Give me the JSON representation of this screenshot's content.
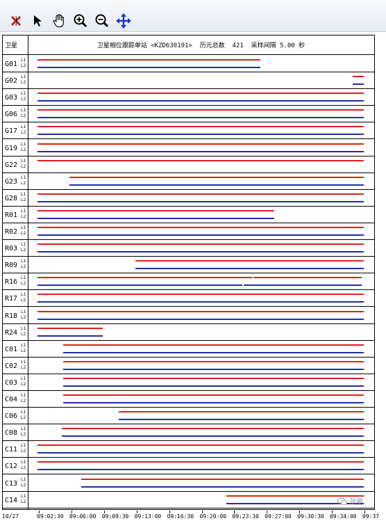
{
  "toolbar": {
    "tools": [
      {
        "name": "clear-icon",
        "color": "#cc1111"
      },
      {
        "name": "pointer-icon",
        "color": "#000000"
      },
      {
        "name": "pan-hand-icon",
        "color": "#000000"
      },
      {
        "name": "zoom-in-icon",
        "color": "#000000"
      },
      {
        "name": "zoom-out-icon",
        "color": "#000000"
      },
      {
        "name": "move-arrows-icon",
        "color": "#1a2fd0"
      }
    ]
  },
  "header": {
    "sat_label": "卫星",
    "title": "卫星相位跟踪单站 <KZD630191>  历元总数  421  采样间隔 5.00 秒"
  },
  "colors": {
    "l1": "#e0201c",
    "l2": "#1c2fa8"
  },
  "time_axis": {
    "date": "10/27",
    "start": "09:02:30",
    "end": "09:37:30",
    "ticks": [
      "09:02:30",
      "09:06:00",
      "09:09:30",
      "09:13:00",
      "09:16:30",
      "09:20:00",
      "09:23:30",
      "09:27:00",
      "09:30:30",
      "09:34:00",
      "09:37"
    ]
  },
  "satellites": [
    {
      "name": "G01",
      "band1": "L1",
      "band2": "L2",
      "l1": [
        [
          0.0,
          0.682
        ]
      ],
      "l2": [
        [
          0.0,
          0.682
        ]
      ]
    },
    {
      "name": "G02",
      "band1": "L1",
      "band2": "L2",
      "l1": [
        [
          0.966,
          1.0
        ]
      ],
      "l2": [
        [
          0.966,
          1.0
        ]
      ]
    },
    {
      "name": "G03",
      "band1": "L1",
      "band2": "L2",
      "l1": [
        [
          0.0,
          1.0
        ]
      ],
      "l2": [
        [
          0.0,
          1.0
        ]
      ]
    },
    {
      "name": "G06",
      "band1": "L1",
      "band2": "L2",
      "l1": [
        [
          0.0,
          1.0
        ]
      ],
      "l2": [
        [
          0.0,
          1.0
        ]
      ]
    },
    {
      "name": "G17",
      "band1": "L1",
      "band2": "L2",
      "l1": [
        [
          0.0,
          1.0
        ]
      ],
      "l2": [
        [
          0.0,
          1.0
        ]
      ]
    },
    {
      "name": "G19",
      "band1": "L1",
      "band2": "L2",
      "l1": [
        [
          0.0,
          1.0
        ]
      ],
      "l2": [
        [
          0.0,
          1.0
        ]
      ]
    },
    {
      "name": "G22",
      "band1": "L1",
      "band2": "L2",
      "l1": [
        [
          0.0,
          1.0
        ]
      ],
      "l2": []
    },
    {
      "name": "G23",
      "band1": "L1",
      "band2": "L2",
      "l1": [
        [
          0.098,
          1.0
        ]
      ],
      "l2": [
        [
          0.098,
          1.0
        ]
      ]
    },
    {
      "name": "G28",
      "band1": "L1",
      "band2": "L2",
      "l1": [
        [
          0.0,
          1.0
        ]
      ],
      "l2": [
        [
          0.0,
          1.0
        ]
      ]
    },
    {
      "name": "R01",
      "band1": "L1",
      "band2": "L2",
      "l1": [
        [
          0.0,
          0.726
        ]
      ],
      "l2": [
        [
          0.0,
          0.726
        ]
      ]
    },
    {
      "name": "R02",
      "band1": "L1",
      "band2": "L2",
      "l1": [
        [
          0.0,
          1.0
        ]
      ],
      "l2": [
        [
          0.0,
          1.0
        ]
      ]
    },
    {
      "name": "R03",
      "band1": "L1",
      "band2": "L2",
      "l1": [
        [
          0.0,
          1.0
        ]
      ],
      "l2": [
        [
          0.0,
          1.0
        ]
      ]
    },
    {
      "name": "R09",
      "band1": "L1",
      "band2": "L2",
      "l1": [
        [
          0.299,
          1.0
        ]
      ],
      "l2": [
        [
          0.299,
          1.0
        ]
      ]
    },
    {
      "name": "R16",
      "band1": "L1",
      "band2": "L2",
      "l1": [
        [
          0.0,
          0.658
        ],
        [
          0.662,
          0.994
        ]
      ],
      "l2": [
        [
          0.0,
          0.628
        ],
        [
          0.632,
          0.994
        ]
      ]
    },
    {
      "name": "R17",
      "band1": "L1",
      "band2": "L2",
      "l1": [
        [
          0.0,
          1.0
        ]
      ],
      "l2": [
        [
          0.0,
          1.0
        ]
      ]
    },
    {
      "name": "R18",
      "band1": "L1",
      "band2": "L2",
      "l1": [
        [
          0.0,
          1.0
        ]
      ],
      "l2": [
        [
          0.0,
          1.0
        ]
      ]
    },
    {
      "name": "R24",
      "band1": "L1",
      "band2": "L2",
      "l1": [
        [
          0.0,
          0.2
        ]
      ],
      "l2": [
        [
          0.0,
          0.2
        ]
      ]
    },
    {
      "name": "C01",
      "band1": "L1",
      "band2": "L2",
      "l1": [
        [
          0.079,
          1.0
        ]
      ],
      "l2": [
        [
          0.079,
          1.0
        ]
      ]
    },
    {
      "name": "C02",
      "band1": "L1",
      "band2": "L2",
      "l1": [
        [
          0.079,
          1.0
        ]
      ],
      "l2": [
        [
          0.079,
          1.0
        ]
      ]
    },
    {
      "name": "C03",
      "band1": "L1",
      "band2": "L2",
      "l1": [
        [
          0.079,
          1.0
        ]
      ],
      "l2": [
        [
          0.079,
          1.0
        ]
      ]
    },
    {
      "name": "C04",
      "band1": "L1",
      "band2": "L2",
      "l1": [
        [
          0.079,
          1.0
        ]
      ],
      "l2": [
        [
          0.079,
          1.0
        ]
      ]
    },
    {
      "name": "C06",
      "band1": "L1",
      "band2": "L2",
      "l1": [
        [
          0.248,
          1.0
        ]
      ],
      "l2": [
        [
          0.248,
          1.0
        ]
      ]
    },
    {
      "name": "C08",
      "band1": "L1",
      "band2": "L2",
      "l1": [
        [
          0.075,
          1.0
        ]
      ],
      "l2": [
        [
          0.075,
          1.0
        ]
      ]
    },
    {
      "name": "C11",
      "band1": "L1",
      "band2": "L2",
      "l1": [
        [
          0.0,
          1.0
        ]
      ],
      "l2": [
        [
          0.0,
          1.0
        ]
      ]
    },
    {
      "name": "C12",
      "band1": "L1",
      "band2": "L2",
      "l1": [
        [
          0.0,
          1.0
        ]
      ],
      "l2": [
        [
          0.0,
          1.0
        ]
      ]
    },
    {
      "name": "C13",
      "band1": "L1",
      "band2": "L2",
      "l1": [
        [
          0.135,
          1.0
        ]
      ],
      "l2": [
        [
          0.135,
          1.0
        ]
      ]
    },
    {
      "name": "C14",
      "band1": "L1",
      "band2": "L2",
      "l1": [
        [
          0.579,
          1.0
        ]
      ],
      "l2": [
        [
          0.579,
          1.0
        ]
      ]
    }
  ],
  "watermark": "测量"
}
